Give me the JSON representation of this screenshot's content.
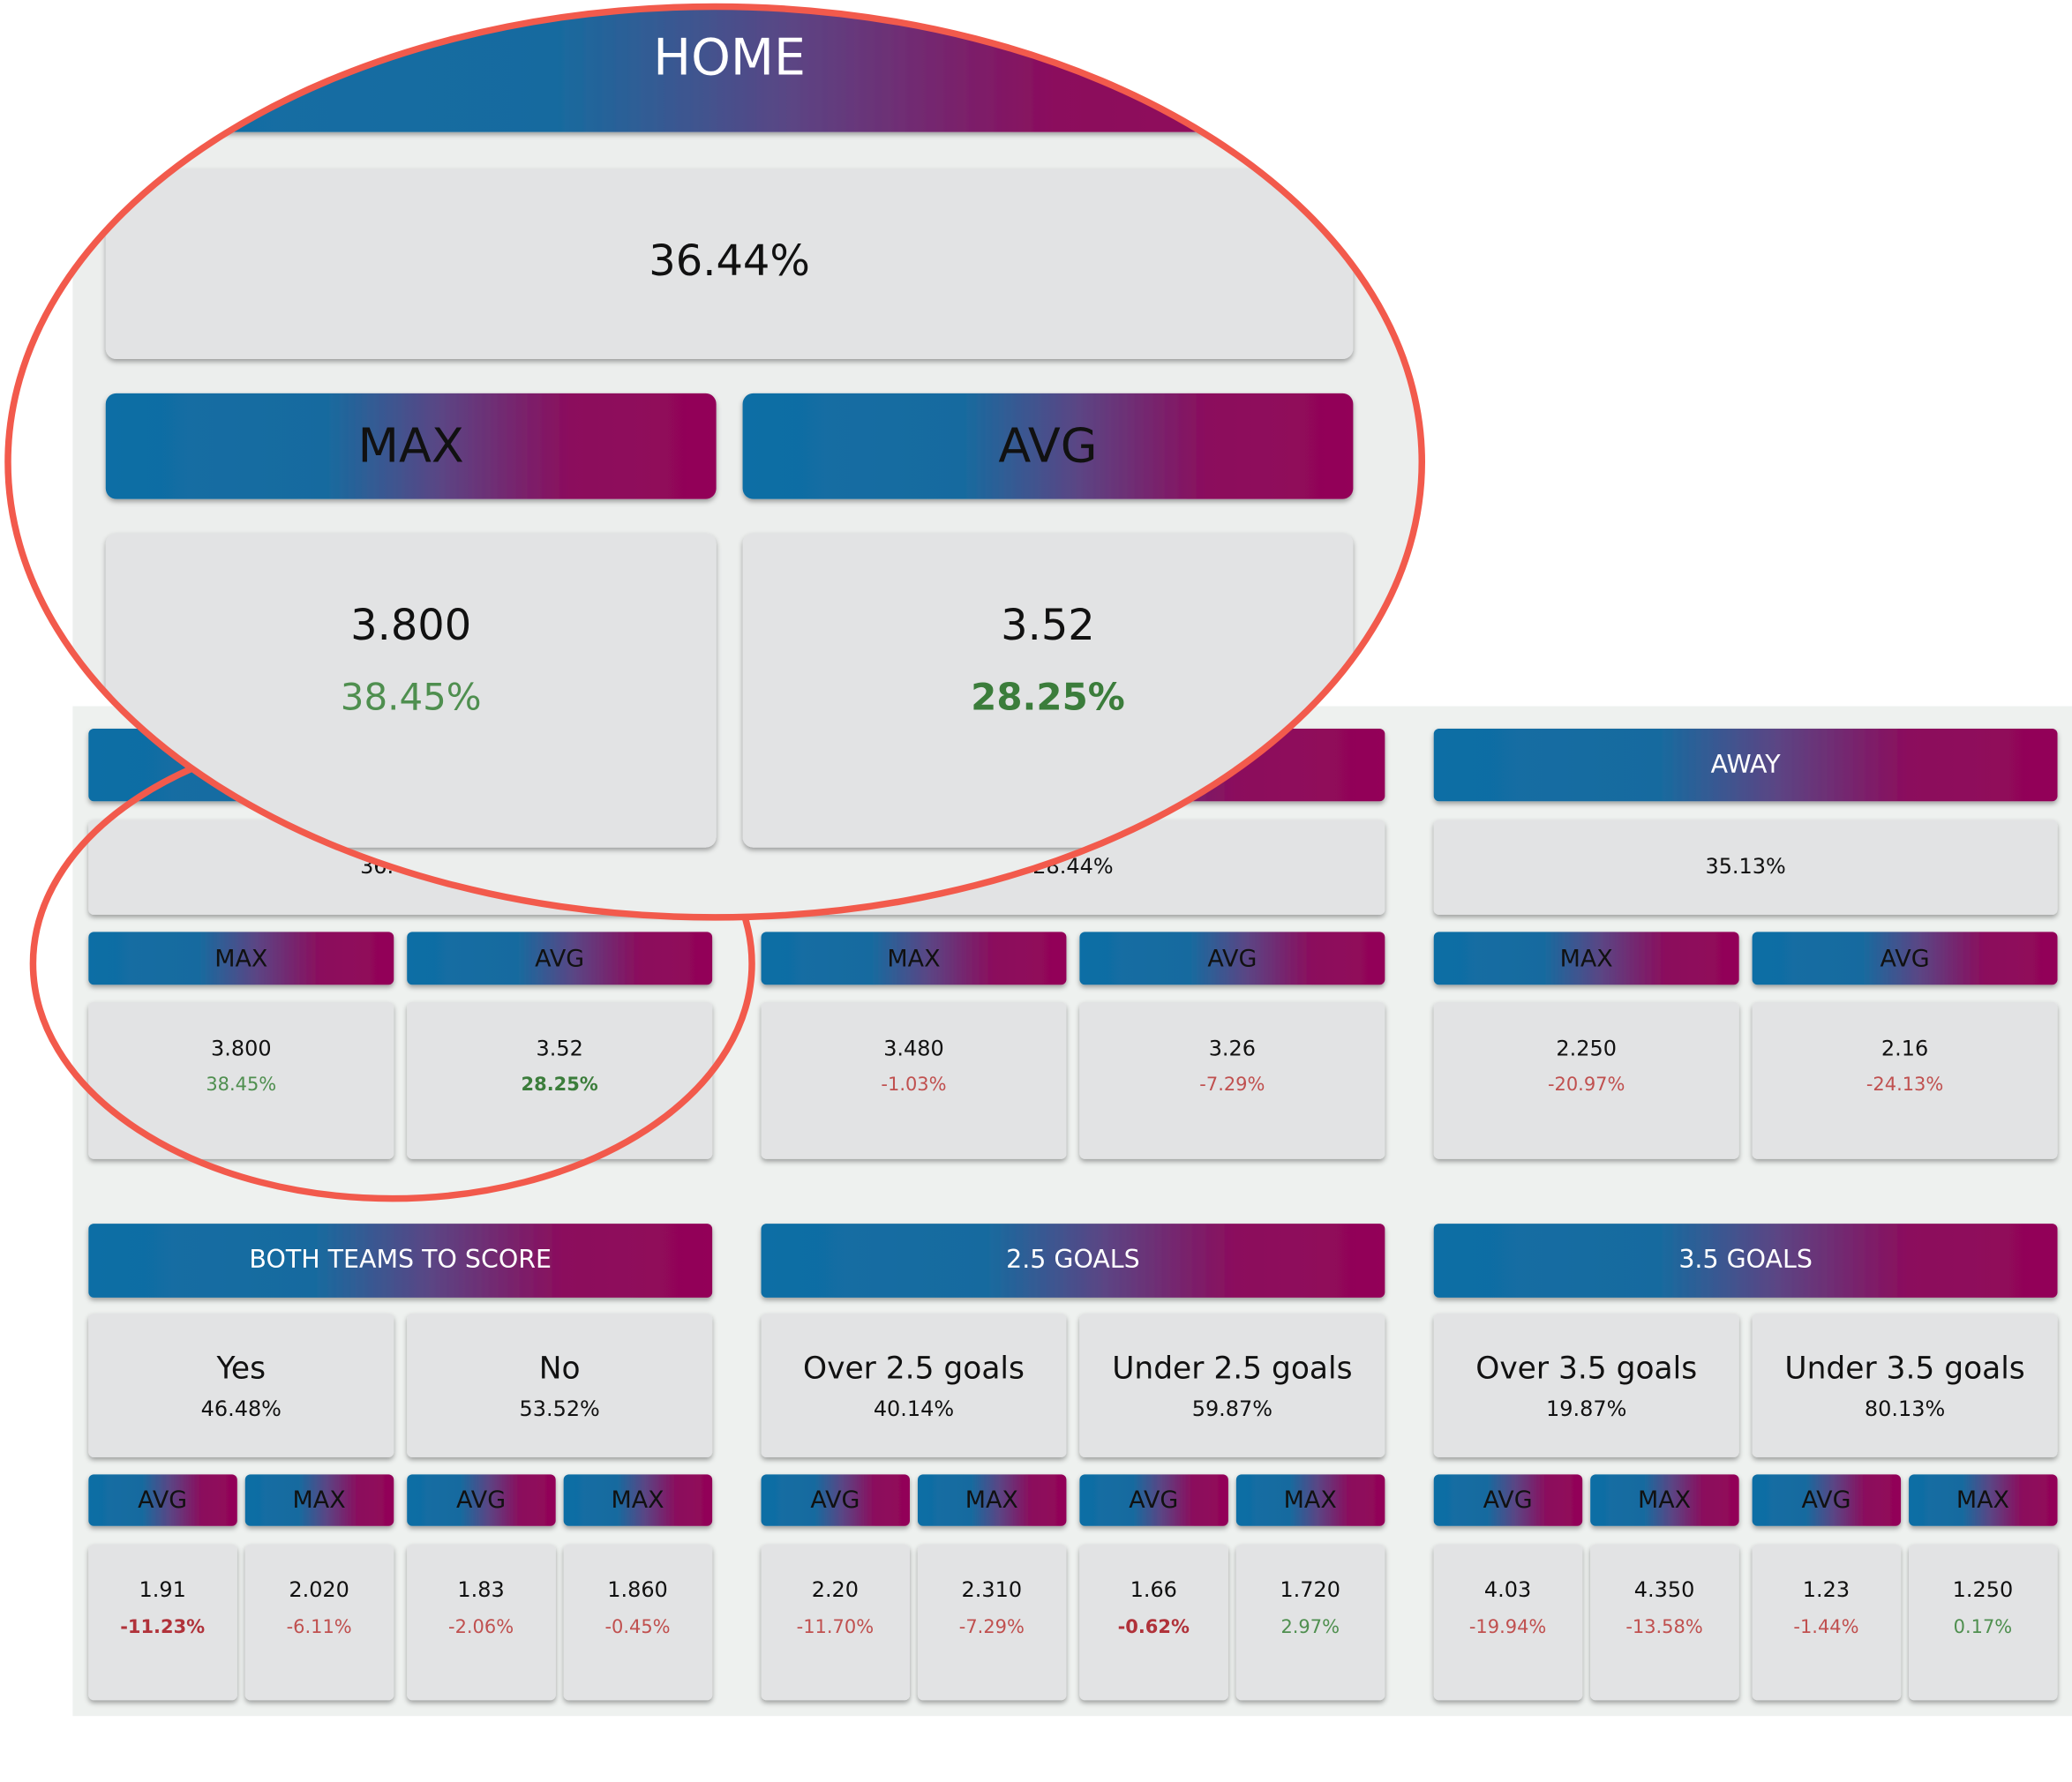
{
  "markets": [
    {
      "title": "HOME",
      "probability": "36.44%",
      "columns": [
        {
          "label": "MAX",
          "odds": "3.800",
          "change": "38.45%"
        },
        {
          "label": "AVG",
          "odds": "3.52",
          "change": "28.25%",
          "bold": true
        }
      ]
    },
    {
      "probability": "28.44%",
      "columns": [
        {
          "label": "MAX",
          "odds": "3.480",
          "change": "-1.03%"
        },
        {
          "label": "AVG",
          "odds": "3.26",
          "change": "-7.29%"
        }
      ]
    },
    {
      "title": "AWAY",
      "probability": "35.13%",
      "columns": [
        {
          "label": "MAX",
          "odds": "2.250",
          "change": "-20.97%"
        },
        {
          "label": "AVG",
          "odds": "2.16",
          "change": "-24.13%"
        }
      ]
    }
  ],
  "goal_markets": [
    {
      "title": "BOTH TEAMS TO SCORE",
      "options": [
        {
          "label": "Yes",
          "probability": "46.48%",
          "columns": [
            {
              "label": "AVG",
              "odds": "1.91",
              "change": "-11.23%",
              "bold": true
            },
            {
              "label": "MAX",
              "odds": "2.020",
              "change": "-6.11%"
            }
          ]
        },
        {
          "label": "No",
          "probability": "53.52%",
          "columns": [
            {
              "label": "AVG",
              "odds": "1.83",
              "change": "-2.06%"
            },
            {
              "label": "MAX",
              "odds": "1.860",
              "change": "-0.45%"
            }
          ]
        }
      ]
    },
    {
      "title": "2.5 GOALS",
      "options": [
        {
          "label": "Over 2.5 goals",
          "probability": "40.14%",
          "columns": [
            {
              "label": "AVG",
              "odds": "2.20",
              "change": "-11.70%"
            },
            {
              "label": "MAX",
              "odds": "2.310",
              "change": "-7.29%"
            }
          ]
        },
        {
          "label": "Under 2.5 goals",
          "probability": "59.87%",
          "columns": [
            {
              "label": "AVG",
              "odds": "1.66",
              "change": "-0.62%",
              "bold": true
            },
            {
              "label": "MAX",
              "odds": "1.720",
              "change": "2.97%"
            }
          ]
        }
      ]
    },
    {
      "title": "3.5 GOALS",
      "options": [
        {
          "label": "Over 3.5 goals",
          "probability": "19.87%",
          "columns": [
            {
              "label": "AVG",
              "odds": "4.03",
              "change": "-19.94%"
            },
            {
              "label": "MAX",
              "odds": "4.350",
              "change": "-13.58%"
            }
          ]
        },
        {
          "label": "Under 3.5 goals",
          "probability": "80.13%",
          "columns": [
            {
              "label": "AVG",
              "odds": "1.23",
              "change": "-1.44%"
            },
            {
              "label": "MAX",
              "odds": "1.250",
              "change": "0.17%"
            }
          ]
        }
      ]
    }
  ]
}
